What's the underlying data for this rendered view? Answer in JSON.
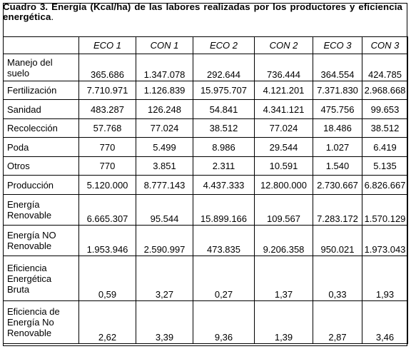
{
  "caption": {
    "title": "Cuadro 3. Energía (Kcal/ha) de las labores realizadas por los productores y eficiencia energética",
    "end": "."
  },
  "table": {
    "columns": [
      "",
      "ECO 1",
      "CON 1",
      "ECO 2",
      "CON 2",
      "ECO 3",
      "CON 3"
    ],
    "rows": [
      {
        "label": [
          "Manejo del",
          "suelo"
        ],
        "values": [
          "365.686",
          "1.347.078",
          "292.644",
          "736.444",
          "364.554",
          "424.785"
        ]
      },
      {
        "label": [
          "Fertilización"
        ],
        "values": [
          "7.710.971",
          "1.126.839",
          "15.975.707",
          "4.121.201",
          "7.371.830",
          "2.968.668"
        ]
      },
      {
        "label": [
          "Sanidad"
        ],
        "values": [
          "483.287",
          "126.248",
          "54.841",
          "4.341.121",
          "475.756",
          "99.653"
        ]
      },
      {
        "label": [
          "Recolección"
        ],
        "values": [
          "57.768",
          "77.024",
          "38.512",
          "77.024",
          "18.486",
          "38.512"
        ]
      },
      {
        "label": [
          "Poda"
        ],
        "values": [
          "770",
          "5.499",
          "8.986",
          "29.544",
          "1.027",
          "6.419"
        ]
      },
      {
        "label": [
          "Otros"
        ],
        "values": [
          "770",
          "3.851",
          "2.311",
          "10.591",
          "1.540",
          "5.135"
        ]
      },
      {
        "label": [
          "Producción"
        ],
        "values": [
          "5.120.000",
          "8.777.143",
          "4.437.333",
          "12.800.000",
          "2.730.667",
          "6.826.667"
        ]
      },
      {
        "label": [
          "Energía",
          "Renovable"
        ],
        "values": [
          "6.665.307",
          "95.544",
          "15.899.166",
          "109.567",
          "7.283.172",
          "1.570.129"
        ]
      },
      {
        "label": [
          "Energía NO",
          "Renovable"
        ],
        "values": [
          "1.953.946",
          "2.590.997",
          "473.835",
          "9.206.358",
          "950.021",
          "1.973.043"
        ]
      },
      {
        "label": [
          "Eficiencia",
          "Energética",
          "Bruta"
        ],
        "values": [
          "0,59",
          "3,27",
          "0,27",
          "1,37",
          "0,33",
          "1,93"
        ]
      },
      {
        "label": [
          "Eficiencia de",
          "Energía No",
          "Renovable"
        ],
        "values": [
          "2,62",
          "3,39",
          "9,36",
          "1,39",
          "2,87",
          "3,46"
        ]
      }
    ]
  }
}
